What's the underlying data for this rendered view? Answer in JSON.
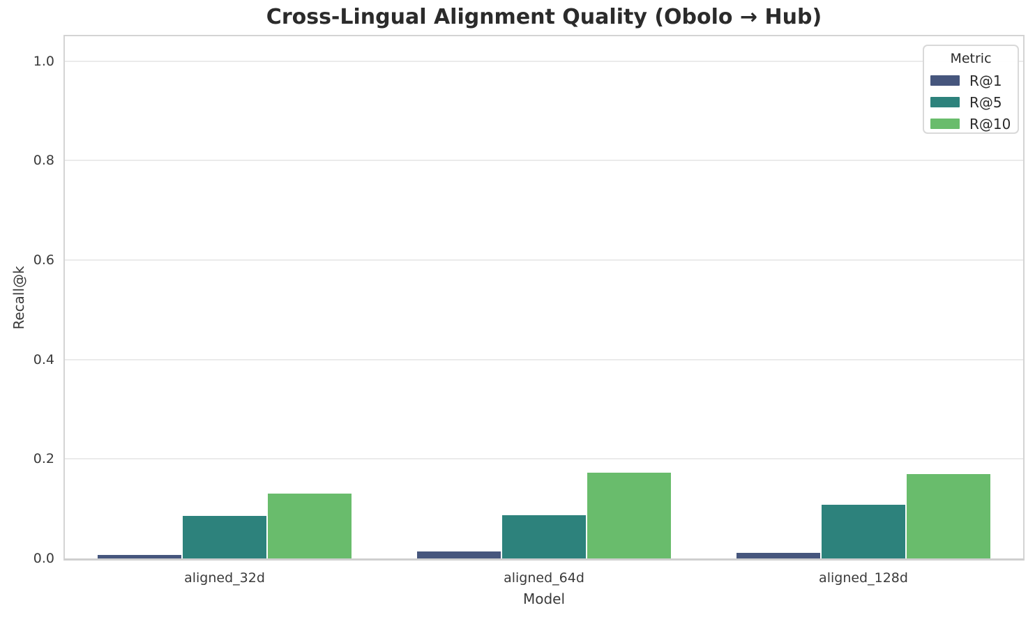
{
  "title": "Cross-Lingual Alignment Quality (Obolo → Hub)",
  "chart_data": {
    "type": "bar",
    "categories": [
      "aligned_32d",
      "aligned_64d",
      "aligned_128d"
    ],
    "series": [
      {
        "name": "R@1",
        "color": "#46567d",
        "values": [
          0.007,
          0.014,
          0.011
        ]
      },
      {
        "name": "R@5",
        "color": "#2d827c",
        "values": [
          0.085,
          0.087,
          0.108
        ]
      },
      {
        "name": "R@10",
        "color": "#69bc6c",
        "values": [
          0.13,
          0.172,
          0.17
        ]
      }
    ],
    "title": "Cross-Lingual Alignment Quality (Obolo → Hub)",
    "xlabel": "Model",
    "ylabel": "Recall@k",
    "ylim": [
      0,
      1.05
    ],
    "yticks": [
      "0.0",
      "0.2",
      "0.4",
      "0.6",
      "0.8",
      "1.0"
    ],
    "legend": {
      "title": "Metric",
      "position": "upper right"
    },
    "grid": "horizontal",
    "colors": {
      "grid": "#ebebeb",
      "spine": "#d4d4d4",
      "tick_text": "#3a3a3a",
      "title_text": "#2b2b2b"
    }
  }
}
